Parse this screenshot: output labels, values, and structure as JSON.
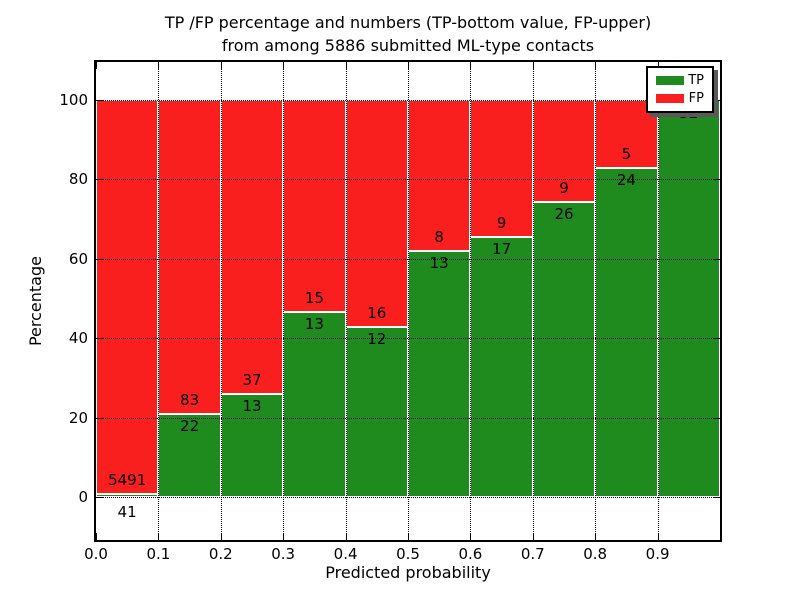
{
  "figure": {
    "title_line1": "TP /FP percentage and numbers (TP-bottom value, FP-upper)",
    "title_line2": "from among 5886 submitted ML-type contacts"
  },
  "chart_data": {
    "type": "bar",
    "subtype": "stacked-percentage-histogram",
    "title": "TP /FP percentage and numbers (TP-bottom value, FP-upper) from among 5886 submitted ML-type contacts",
    "total_contacts": 5886,
    "xlabel": "Predicted probability",
    "ylabel": "Percentage",
    "xlim": [
      0.0,
      1.0
    ],
    "ylim": [
      0,
      100
    ],
    "bin_width": 0.1,
    "grid": "dotted",
    "x_tick_labels": [
      "0.0",
      "0.1",
      "0.2",
      "0.3",
      "0.4",
      "0.5",
      "0.6",
      "0.7",
      "0.8",
      "0.9"
    ],
    "y_ticks": [
      0,
      20,
      40,
      60,
      80,
      100
    ],
    "y_tick_labels": [
      "0",
      "20",
      "40",
      "60",
      "80",
      "100"
    ],
    "categories": [
      "0.0-0.1",
      "0.1-0.2",
      "0.2-0.3",
      "0.3-0.4",
      "0.4-0.5",
      "0.5-0.6",
      "0.6-0.7",
      "0.7-0.8",
      "0.8-0.9",
      "0.9-1.0"
    ],
    "series": [
      {
        "name": "TP",
        "color": "#1f8b1f",
        "values": [
          41,
          22,
          13,
          13,
          12,
          13,
          17,
          26,
          24,
          32
        ]
      },
      {
        "name": "FP",
        "color": "#fa1f1f",
        "values": [
          5491,
          83,
          37,
          15,
          16,
          8,
          9,
          9,
          5,
          0
        ]
      }
    ],
    "legend": {
      "position": "upper-right",
      "entries": [
        {
          "label": "TP",
          "color": "#1f8b1f"
        },
        {
          "label": "FP",
          "color": "#fa1f1f"
        }
      ]
    }
  }
}
